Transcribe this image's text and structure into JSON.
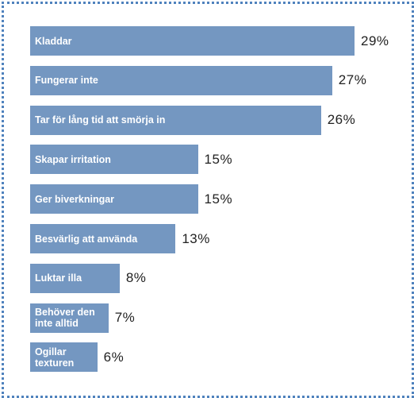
{
  "chart_data": {
    "type": "bar",
    "orientation": "horizontal",
    "color": "#7497c1",
    "categories": [
      "Kladdar",
      "Fungerar inte",
      "Tar för lång tid att smörja in",
      "Skapar irritation",
      "Ger biverkningar",
      "Besvärlig att använda",
      "Luktar illa",
      "Behöver den inte alltid",
      "Ogillar texturen"
    ],
    "values": [
      29,
      27,
      26,
      15,
      15,
      13,
      8,
      7,
      6
    ],
    "value_labels": [
      "29%",
      "27%",
      "26%",
      "15%",
      "15%",
      "13%",
      "8%",
      "7%",
      "6%"
    ]
  }
}
